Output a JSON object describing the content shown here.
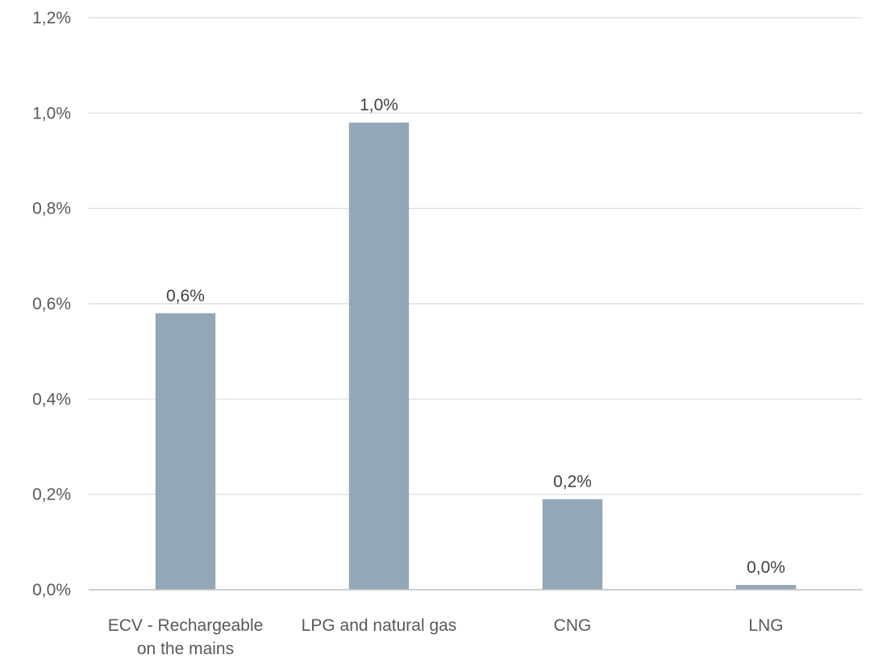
{
  "chart_data": {
    "type": "bar",
    "title": "",
    "xlabel": "",
    "ylabel": "",
    "categories": [
      [
        "ECV - Rechargeable",
        "on the mains"
      ],
      [
        "LPG and natural gas"
      ],
      [
        "CNG"
      ],
      [
        "LNG"
      ]
    ],
    "values": [
      0.58,
      0.98,
      0.19,
      0.01
    ],
    "data_labels": [
      "0,6%",
      "1,0%",
      "0,2%",
      "0,0%"
    ],
    "ylim": [
      0,
      1.2
    ],
    "yticks": [
      0,
      0.2,
      0.4,
      0.6,
      0.8,
      1.0,
      1.2
    ],
    "ytick_labels": [
      "0,0%",
      "0,2%",
      "0,4%",
      "0,6%",
      "0,8%",
      "1,0%",
      "1,2%"
    ],
    "grid": true,
    "legend": "none",
    "bar_color": "#93a7b9"
  }
}
